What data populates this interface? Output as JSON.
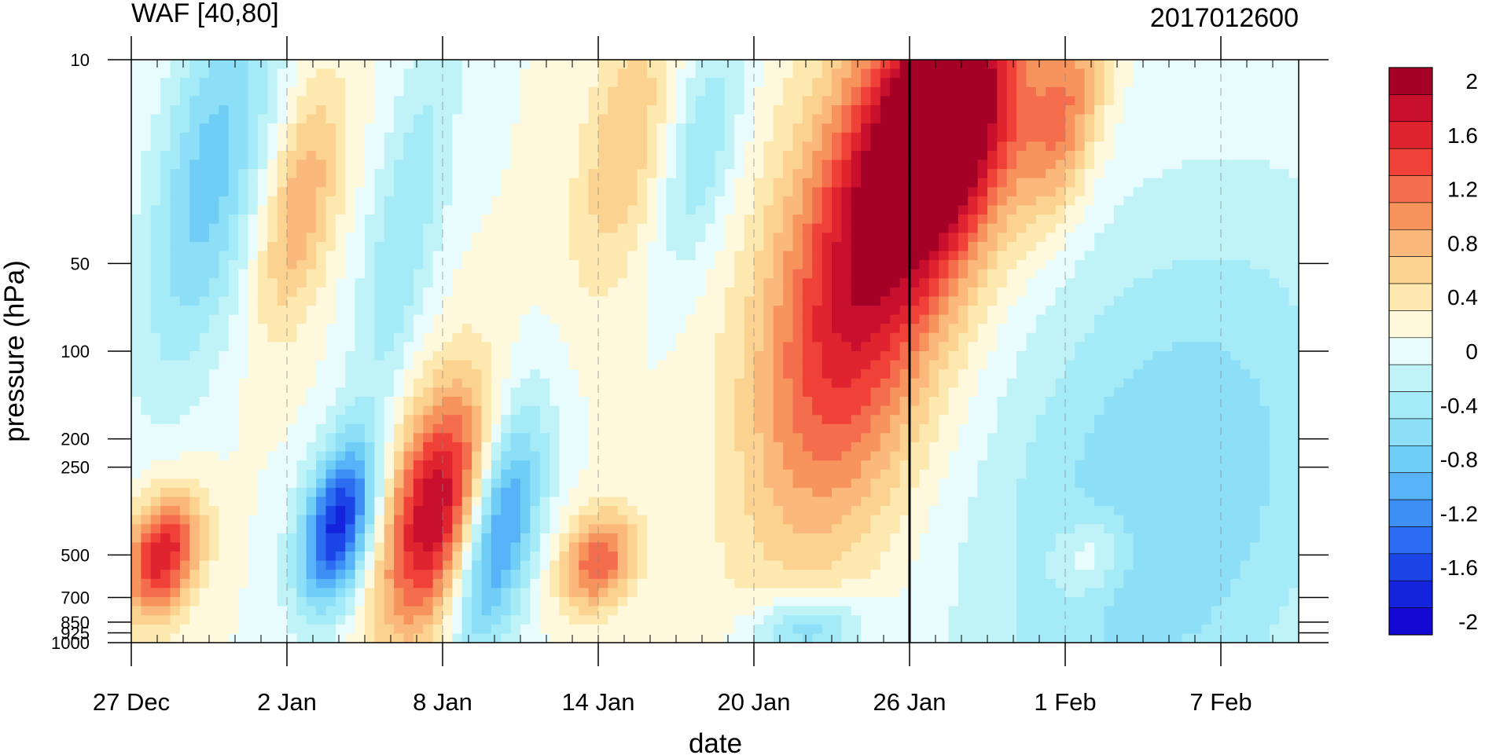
{
  "chart_data": {
    "type": "heatmap",
    "title_left": "WAF [40,80]",
    "title_right": "2017012600",
    "xlabel": "date",
    "ylabel": "pressure (hPa)",
    "x_tick_labels": [
      "27 Dec",
      "2 Jan",
      "8 Jan",
      "14 Jan",
      "20 Jan",
      "26 Jan",
      "1 Feb",
      "7 Feb"
    ],
    "x_tick_days": [
      0,
      6,
      12,
      18,
      24,
      30,
      36,
      42
    ],
    "xlim_days": [
      0,
      45
    ],
    "reference_day": 30,
    "y_scale": "log",
    "ylim": [
      1000,
      10
    ],
    "y_ticks": [
      10,
      50,
      100,
      200,
      250,
      500,
      700,
      850,
      925,
      1000
    ],
    "y_tick_labels": [
      "10",
      "50",
      "100",
      "200",
      "250",
      "500",
      "700",
      "850",
      "925",
      "1000"
    ],
    "colorbar": {
      "labels": [
        "2",
        "1.6",
        "1.2",
        "0.8",
        "0.4",
        "0",
        "-0.4",
        "-0.8",
        "-1.2",
        "-1.6",
        "-2"
      ],
      "label_values": [
        2,
        1.6,
        1.2,
        0.8,
        0.4,
        0,
        -0.4,
        -0.8,
        -1.2,
        -1.6,
        -2
      ],
      "levels": [
        2.0,
        1.8,
        1.6,
        1.4,
        1.2,
        1.0,
        0.8,
        0.6,
        0.4,
        0.2,
        0.0,
        -0.2,
        -0.4,
        -0.6,
        -0.8,
        -1.0,
        -1.2,
        -1.4,
        -1.6,
        -1.8,
        -2.0
      ],
      "colors": [
        "#a50026",
        "#c8102e",
        "#e0242f",
        "#f04138",
        "#f46d4d",
        "#f7945d",
        "#fab97a",
        "#fbd28f",
        "#fde9b0",
        "#fef8dc",
        "#e8fbfd",
        "#c0f3f8",
        "#a5eaf7",
        "#8cdff6",
        "#70cdf6",
        "#58b2f7",
        "#3e8ff4",
        "#2c6cf0",
        "#1c45e8",
        "#1424dc",
        "#1409d2"
      ]
    },
    "grid": "dashed vertical lines at date ticks",
    "series_description": "Wave activity flux averaged 40-80N, pressure-time cross section; positive (red) bursts propagate upward; strong positive in stratosphere around 26 Jan"
  }
}
